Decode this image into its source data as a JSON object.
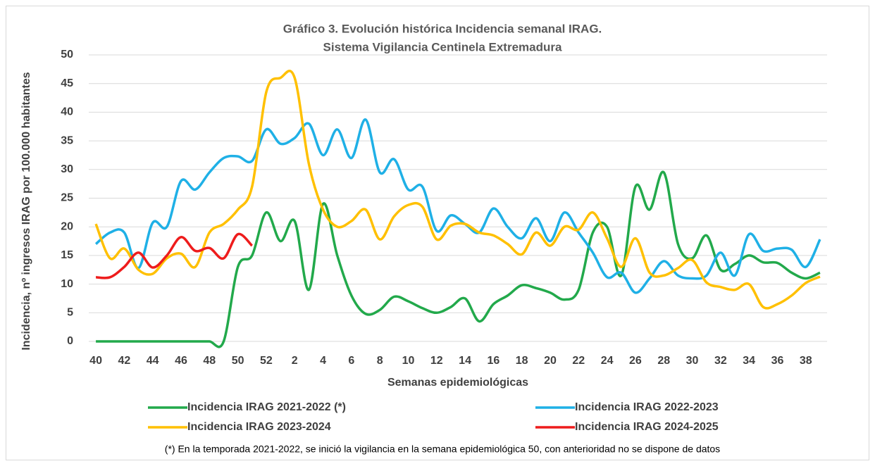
{
  "chart_data": {
    "type": "line",
    "title": "Gráfico 3. Evolución histórica Incidencia semanal IRAG.",
    "subtitle": "Sistema Vigilancia Centinela Extremadura",
    "x_label": "Semanas epidemiológicas",
    "y_label": "Incidencia, nº ingresos IRAG por 100.000 habitantes",
    "annotation": "(*) En la temporada 2021-2022, se inició la vigilancia en la semana epidemiológica 50, con anterioridad no se dispone de datos",
    "categories": [
      "40",
      null,
      "42",
      null,
      "44",
      null,
      "46",
      null,
      "48",
      null,
      "50",
      null,
      "52",
      null,
      "2",
      null,
      "4",
      null,
      "6",
      null,
      "8",
      null,
      "10",
      null,
      "12",
      null,
      "14",
      null,
      "16",
      null,
      "18",
      null,
      "20",
      null,
      "22",
      null,
      "24",
      null,
      "26",
      null,
      "28",
      null,
      "30",
      null,
      "32",
      null,
      "34",
      null,
      "36",
      null,
      "38",
      null
    ],
    "ylim": [
      0,
      50
    ],
    "yticks": [
      0,
      5,
      10,
      15,
      20,
      25,
      30,
      35,
      40,
      45,
      50
    ],
    "grid": true,
    "legend": "bottom",
    "smooth": true,
    "series": [
      {
        "name": "Incidencia IRAG 2021-2022 (*)",
        "color": "#22a94b",
        "values": [
          0,
          0,
          0,
          0,
          0,
          0,
          0,
          0,
          0,
          0,
          13,
          15,
          22.5,
          17.5,
          21,
          9,
          24,
          15,
          8,
          4.8,
          5.5,
          7.8,
          7,
          5.8,
          5,
          6,
          7.5,
          3.5,
          6.5,
          8,
          9.8,
          9.3,
          8.5,
          7.3,
          9,
          19,
          20,
          11.5,
          27,
          23,
          29.5,
          17,
          14.5,
          18.5,
          12.5,
          13.5,
          15,
          13.8,
          13.7,
          12,
          11,
          12
        ]
      },
      {
        "name": "Incidencia IRAG 2022-2023",
        "color": "#1fb0e6",
        "values": [
          17,
          19,
          19,
          12.8,
          20.7,
          20,
          28,
          26.5,
          29.5,
          32,
          32.3,
          31.5,
          37,
          34.5,
          35.5,
          38,
          32.5,
          37,
          32,
          38.7,
          29.5,
          31.8,
          26.5,
          27,
          19.3,
          22,
          20.5,
          19,
          23.2,
          20,
          18,
          21.5,
          17.5,
          22.5,
          19,
          15.5,
          11.2,
          12,
          8.5,
          11,
          14,
          11.5,
          11,
          11.5,
          15.5,
          11.5,
          18.7,
          15.8,
          16.2,
          16,
          13,
          17.8
        ]
      },
      {
        "name": "Incidencia IRAG 2023-2024",
        "color": "#ffc000",
        "values": [
          20.5,
          14.5,
          16.2,
          12.5,
          11.8,
          14.5,
          15.3,
          13,
          19,
          20.5,
          23,
          27,
          43.5,
          46,
          46,
          31,
          23,
          20,
          21,
          23,
          17.8,
          21.8,
          23.8,
          23.5,
          17.8,
          20.2,
          20.5,
          19,
          18.5,
          17,
          15.2,
          19,
          16.7,
          20,
          19.5,
          22.5,
          18,
          13,
          18,
          12,
          11.5,
          12.8,
          14.2,
          10.3,
          9.5,
          9,
          10,
          6,
          6.5,
          8,
          10.2,
          11.3
        ]
      },
      {
        "name": "Incidencia IRAG 2024-2025",
        "color": "#ee1c1c",
        "values": [
          11.2,
          11.2,
          13,
          15.5,
          12.9,
          15,
          18.2,
          15.8,
          16.3,
          14.5,
          18.7,
          16.7,
          null,
          null,
          null,
          null,
          null,
          null,
          null,
          null,
          null,
          null,
          null,
          null,
          null,
          null,
          null,
          null,
          null,
          null,
          null,
          null,
          null,
          null,
          null,
          null,
          null,
          null,
          null,
          null,
          null,
          null,
          null,
          null,
          null,
          null,
          null,
          null,
          null,
          null,
          null,
          null
        ]
      }
    ]
  }
}
